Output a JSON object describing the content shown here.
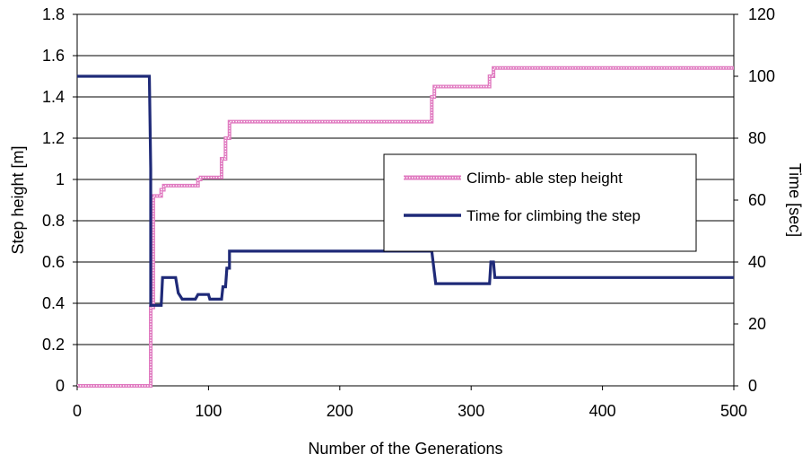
{
  "chart_data": {
    "type": "line",
    "xlabel": "Number of the Generations",
    "ylabel": "Step height [m]",
    "y2label": "Time [sec]",
    "xlim": [
      0,
      500
    ],
    "ylim": [
      0,
      1.8
    ],
    "y2lim": [
      0,
      120
    ],
    "x_ticks": [
      "0",
      "100",
      "200",
      "300",
      "400",
      "500"
    ],
    "y_ticks": [
      "0",
      "0.2",
      "0.4",
      "0.6",
      "0.8",
      "1",
      "1.2",
      "1.4",
      "1.6",
      "1.8"
    ],
    "y2_ticks": [
      "0",
      "20",
      "40",
      "60",
      "80",
      "100",
      "120"
    ],
    "grid": "horizontal",
    "legend_placement": "center-right",
    "series": [
      {
        "name": "Climb- able step height",
        "axis": "left",
        "color": "#e07ac0",
        "style": "dotted-band",
        "x": [
          0,
          56,
          56,
          58,
          58,
          64,
          64,
          66,
          66,
          92,
          92,
          94,
          94,
          110,
          110,
          113,
          113,
          116,
          116,
          270,
          270,
          272,
          272,
          314,
          314,
          317,
          317,
          500
        ],
        "y": [
          0,
          0,
          0.38,
          0.38,
          0.92,
          0.92,
          0.95,
          0.95,
          0.97,
          0.97,
          1.0,
          1.0,
          1.01,
          1.01,
          1.1,
          1.1,
          1.2,
          1.2,
          1.28,
          1.28,
          1.4,
          1.4,
          1.45,
          1.45,
          1.5,
          1.5,
          1.54,
          1.54
        ]
      },
      {
        "name": "Time for climbing the step",
        "axis": "right",
        "color": "#1f2a78",
        "style": "solid",
        "x": [
          0,
          55,
          56,
          56,
          64,
          65,
          75,
          77,
          80,
          90,
          92,
          100,
          101,
          110,
          111,
          113,
          114,
          116,
          116,
          270,
          273,
          300,
          314,
          315,
          317,
          318,
          500
        ],
        "y": [
          100,
          100,
          70,
          26,
          26,
          35,
          35,
          30,
          28,
          28,
          29.5,
          29.5,
          28,
          28,
          32,
          32,
          38,
          38,
          43.5,
          43.5,
          33,
          33,
          33,
          40,
          40,
          35,
          35
        ]
      }
    ]
  }
}
